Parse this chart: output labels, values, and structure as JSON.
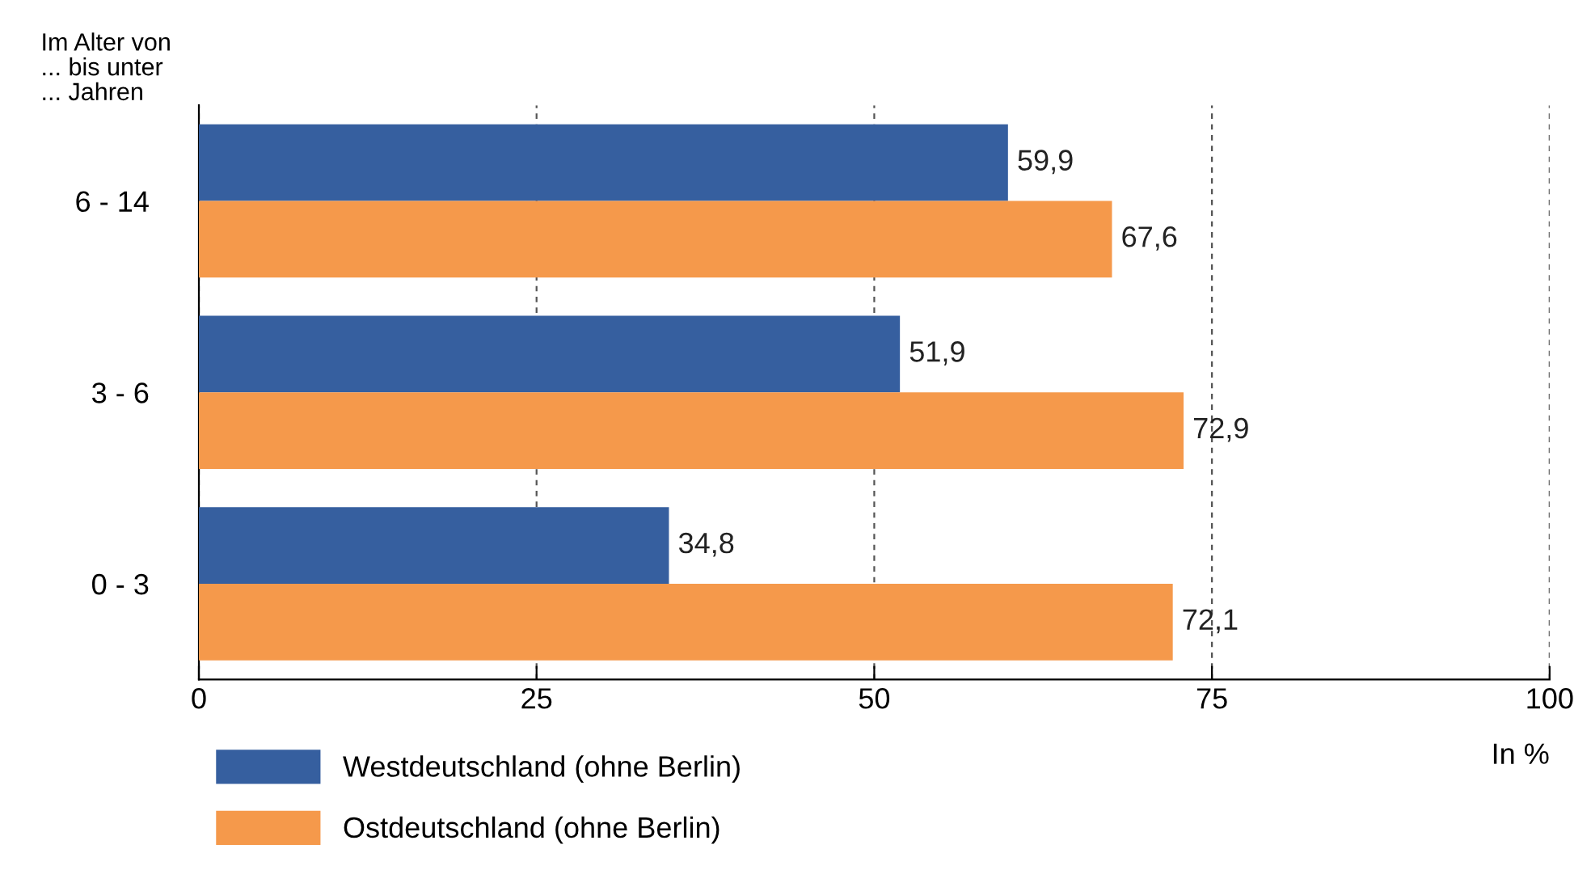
{
  "chart_data": {
    "type": "bar",
    "orientation": "horizontal",
    "ylabel": "Im Alter von\n... bis unter\n... Jahren",
    "xlabel": "In %",
    "categories": [
      "6 - 14",
      "3 - 6",
      "0 - 3"
    ],
    "series": [
      {
        "name": "Westdeutschland (ohne Berlin)",
        "color": "#365f9f",
        "values": [
          59.9,
          51.9,
          34.8
        ],
        "value_labels": [
          "59,9",
          "51,9",
          "34,8"
        ]
      },
      {
        "name": "Ostdeutschland (ohne Berlin)",
        "color": "#f5994b",
        "values": [
          67.6,
          72.9,
          72.1
        ],
        "value_labels": [
          "67,6",
          "72,9",
          "72,1"
        ]
      }
    ],
    "xlim": [
      0,
      100
    ],
    "xticks": [
      0,
      25,
      50,
      75,
      100
    ],
    "grid": "x",
    "line_style": "dashed",
    "legend": "bottom"
  }
}
